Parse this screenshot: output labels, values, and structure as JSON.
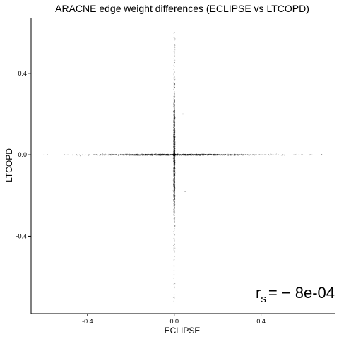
{
  "chart_data": {
    "type": "scatter",
    "title": "ARACNE edge weight differences (ECLIPSE vs LTCOPD)",
    "xlabel": "ECLIPSE",
    "ylabel": "LTCOPD",
    "xlim": [
      -0.66,
      0.74
    ],
    "ylim": [
      -0.78,
      0.67
    ],
    "x_ticks": [
      -0.4,
      0.0,
      0.4
    ],
    "x_tick_labels": [
      "-0.4",
      "0.0",
      "0.4"
    ],
    "y_ticks": [
      -0.4,
      0.0,
      0.4
    ],
    "y_tick_labels": [
      "-0.4",
      "0.0",
      "0.4"
    ],
    "grid": false,
    "point_color": "#000000",
    "annotation": {
      "main": "r",
      "subscript": "s",
      "value": "= − 8e-04"
    },
    "series": [
      {
        "distribution": "cross",
        "x_axis_spread": [
          -0.6,
          0.68
        ],
        "y_axis_spread": [
          -0.72,
          0.6
        ],
        "points": [
          {
            "x": 0.0,
            "y": 0.0
          },
          {
            "x": -0.6,
            "y": 0.0
          },
          {
            "x": -0.45,
            "y": 0.0
          },
          {
            "x": -0.3,
            "y": 0.0
          },
          {
            "x": -0.2,
            "y": 0.0
          },
          {
            "x": -0.1,
            "y": 0.0
          },
          {
            "x": 0.1,
            "y": 0.0
          },
          {
            "x": 0.2,
            "y": 0.0
          },
          {
            "x": 0.35,
            "y": 0.0
          },
          {
            "x": 0.5,
            "y": 0.0
          },
          {
            "x": 0.68,
            "y": 0.0
          },
          {
            "x": 0.0,
            "y": 0.6
          },
          {
            "x": 0.0,
            "y": 0.5
          },
          {
            "x": 0.0,
            "y": 0.35
          },
          {
            "x": 0.0,
            "y": 0.2
          },
          {
            "x": 0.0,
            "y": 0.1
          },
          {
            "x": 0.0,
            "y": -0.1
          },
          {
            "x": 0.0,
            "y": -0.2
          },
          {
            "x": 0.0,
            "y": -0.35
          },
          {
            "x": 0.0,
            "y": -0.5
          },
          {
            "x": 0.0,
            "y": -0.7
          },
          {
            "x": 0.05,
            "y": -0.18
          },
          {
            "x": 0.04,
            "y": 0.2
          }
        ]
      }
    ]
  }
}
